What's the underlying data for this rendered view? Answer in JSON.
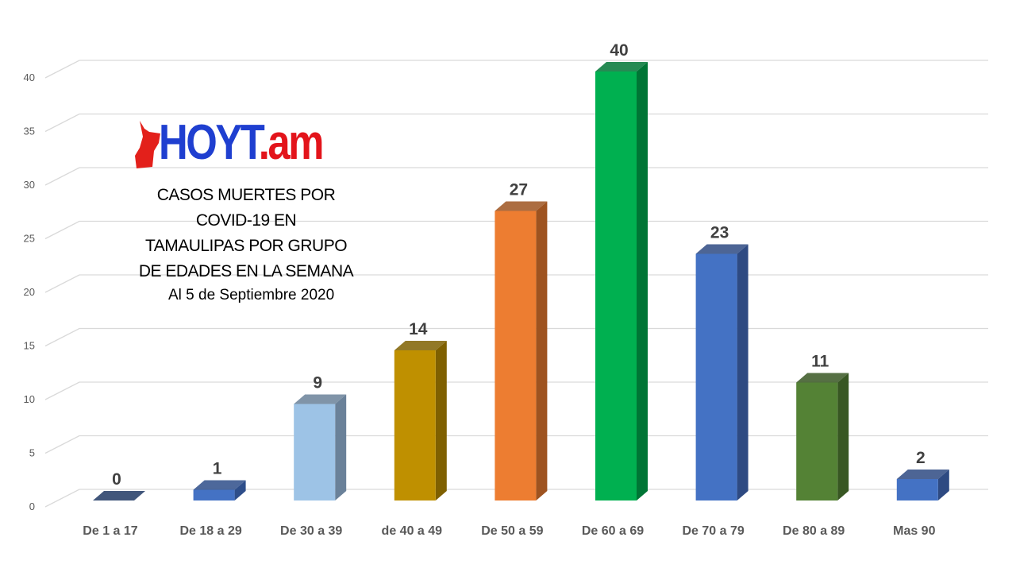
{
  "chart_data": {
    "type": "bar",
    "title": [
      "CASOS MUERTES POR",
      "COVID-19 EN",
      "TAMAULIPAS POR GRUPO",
      "DE EDADES EN LA SEMANA"
    ],
    "subtitle": "Al 5 de Septiembre 2020",
    "categories": [
      "De 1 a 17",
      "De 18 a 29",
      "De 30 a 39",
      "de 40 a 49",
      "De 50 a 59",
      "De 60 a 69",
      "De 70 a 79",
      "De 80 a 89",
      "Mas 90"
    ],
    "values": [
      0,
      1,
      9,
      14,
      27,
      40,
      23,
      11,
      2
    ],
    "colors": [
      "#2f5597",
      "#4472c4",
      "#9dc3e6",
      "#bf9000",
      "#ed7d31",
      "#00b050",
      "#4472c4",
      "#548235",
      "#4472c4"
    ],
    "side_colors": [
      "#203864",
      "#2e4e8a",
      "#6a8199",
      "#7f6000",
      "#9e5320",
      "#007535",
      "#2e4a82",
      "#385723",
      "#2e4a82"
    ],
    "yticks": [
      "0",
      "5",
      "10",
      "15",
      "20",
      "25",
      "30",
      "35",
      "40"
    ],
    "ylim": [
      0,
      40
    ],
    "grid": true,
    "xlabel": "",
    "ylabel": ""
  },
  "logo": {
    "part1": "HOYT",
    "part2": ".am"
  }
}
